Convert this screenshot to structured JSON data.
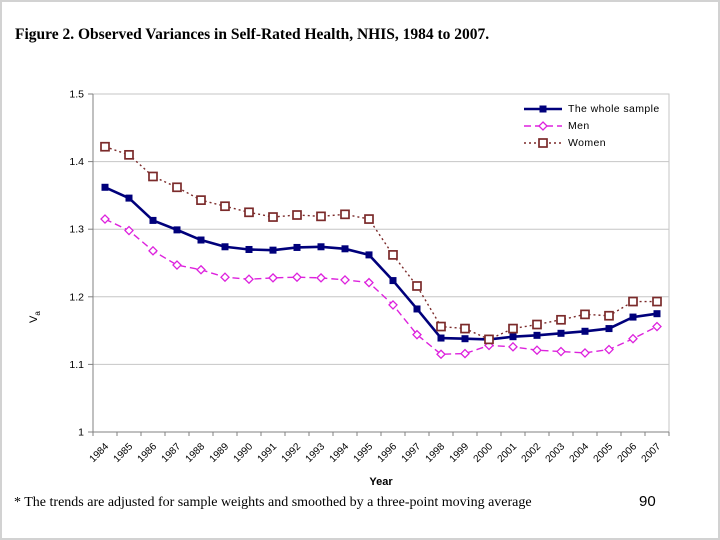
{
  "page": {
    "title": "Figure 2. Observed Variances in Self-Rated Health, NHIS, 1984 to 2007.",
    "footnote": "* The trends are adjusted for sample weights and smoothed by a three-point moving average",
    "page_number": "90"
  },
  "chart_data": {
    "type": "line",
    "title": "",
    "xlabel": "Year",
    "ylabel": "Va",
    "ylabel_main": "V",
    "ylabel_sub": "a",
    "ylim": [
      1.0,
      1.5
    ],
    "ytick_step": 0.1,
    "y_ticks": [
      "1.5",
      "1.4",
      "1.3",
      "1.2",
      "1.1",
      "1"
    ],
    "grid": true,
    "legend_position": "top-right-inside",
    "axis_color": "#808080",
    "grid_color": "#c6c6c6",
    "categories": [
      1984,
      1985,
      1986,
      1987,
      1988,
      1989,
      1990,
      1991,
      1992,
      1993,
      1994,
      1995,
      1996,
      1997,
      1998,
      1999,
      2000,
      2001,
      2002,
      2003,
      2004,
      2005,
      2006,
      2007
    ],
    "series": [
      {
        "name": "The whole sample",
        "color": "#00007b",
        "line": "solid",
        "marker": "filled-square",
        "values": [
          1.362,
          1.346,
          1.313,
          1.299,
          1.284,
          1.274,
          1.27,
          1.269,
          1.273,
          1.274,
          1.271,
          1.262,
          1.224,
          1.182,
          1.139,
          1.138,
          1.137,
          1.141,
          1.143,
          1.146,
          1.149,
          1.153,
          1.17,
          1.175
        ]
      },
      {
        "name": "Men",
        "color": "#dd22dd",
        "line": "dashed",
        "marker": "open-diamond",
        "values": [
          1.315,
          1.298,
          1.268,
          1.247,
          1.24,
          1.229,
          1.226,
          1.228,
          1.229,
          1.228,
          1.225,
          1.221,
          1.188,
          1.144,
          1.115,
          1.116,
          1.128,
          1.126,
          1.121,
          1.119,
          1.117,
          1.122,
          1.138,
          1.156
        ]
      },
      {
        "name": "Women",
        "color": "#7b2a2a",
        "line": "dotted",
        "marker": "open-square",
        "values": [
          1.422,
          1.41,
          1.378,
          1.362,
          1.343,
          1.334,
          1.325,
          1.318,
          1.321,
          1.319,
          1.322,
          1.315,
          1.262,
          1.216,
          1.156,
          1.153,
          1.137,
          1.153,
          1.159,
          1.166,
          1.174,
          1.172,
          1.193,
          1.193
        ]
      }
    ]
  }
}
